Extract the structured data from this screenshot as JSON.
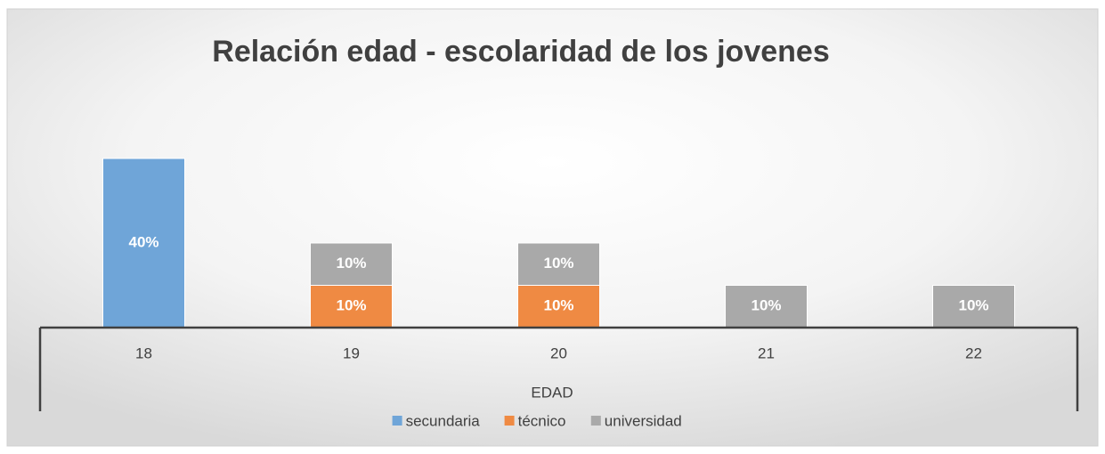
{
  "chart_data": {
    "type": "bar",
    "stacked": true,
    "title": "Relación edad - escolaridad de los jovenes",
    "x_label": "EDAD",
    "categories": [
      "18",
      "19",
      "20",
      "21",
      "22"
    ],
    "series": [
      {
        "name": "secundaria",
        "color": "#6fa5d8",
        "values": [
          40,
          null,
          null,
          null,
          null
        ],
        "value_labels": [
          "40%",
          null,
          null,
          null,
          null
        ]
      },
      {
        "name": "técnico",
        "color": "#ef8a43",
        "values": [
          null,
          10,
          10,
          null,
          null
        ],
        "value_labels": [
          null,
          "10%",
          "10%",
          null,
          null
        ]
      },
      {
        "name": "universidad",
        "color": "#a9a9a9",
        "values": [
          null,
          10,
          10,
          10,
          10
        ],
        "value_labels": [
          null,
          "10%",
          "10%",
          "10%",
          "10%"
        ]
      }
    ],
    "ylim": [
      0,
      40
    ],
    "legend": "bottom"
  }
}
